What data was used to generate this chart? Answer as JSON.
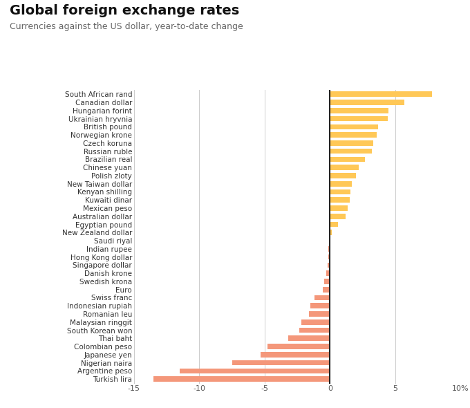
{
  "title": "Global foreign exchange rates",
  "subtitle": "Currencies against the US dollar, year-to-date change",
  "currencies": [
    "South African rand",
    "Canadian dollar",
    "Hungarian forint",
    "Ukrainian hryvnia",
    "British pound",
    "Norwegian krone",
    "Czech koruna",
    "Russian ruble",
    "Brazilian real",
    "Chinese yuan",
    "Polish zloty",
    "New Taiwan dollar",
    "Kenyan shilling",
    "Kuwaiti dinar",
    "Mexican peso",
    "Australian dollar",
    "Egyptian pound",
    "New Zealand dollar",
    "Saudi riyal",
    "Indian rupee",
    "Hong Kong dollar",
    "Singapore dollar",
    "Danish krone",
    "Swedish krona",
    "Euro",
    "Swiss franc",
    "Indonesian rupiah",
    "Romanian leu",
    "Malaysian ringgit",
    "South Korean won",
    "Thai baht",
    "Colombian peso",
    "Japanese yen",
    "Nigerian naira",
    "Argentine peso",
    "Turkish lira"
  ],
  "values": [
    7.8,
    5.7,
    4.5,
    4.4,
    3.7,
    3.6,
    3.3,
    3.2,
    2.7,
    2.2,
    2.0,
    1.7,
    1.55,
    1.5,
    1.35,
    1.2,
    0.6,
    0.15,
    0.05,
    -0.1,
    -0.15,
    -0.2,
    -0.3,
    -0.45,
    -0.55,
    -1.2,
    -1.5,
    -1.6,
    -2.2,
    -2.35,
    -3.2,
    -4.8,
    -5.3,
    -7.5,
    -11.5,
    -13.5
  ],
  "positive_color": "#FFC857",
  "negative_color": "#F4977A",
  "xlim": [
    -15,
    10
  ],
  "xticks": [
    -15,
    -10,
    -5,
    0,
    5,
    10
  ],
  "xlabel_pct": "10%",
  "background_color": "#ffffff",
  "grid_color": "#cccccc",
  "title_fontsize": 14,
  "subtitle_fontsize": 9,
  "label_fontsize": 7.5,
  "xtick_fontsize": 8
}
